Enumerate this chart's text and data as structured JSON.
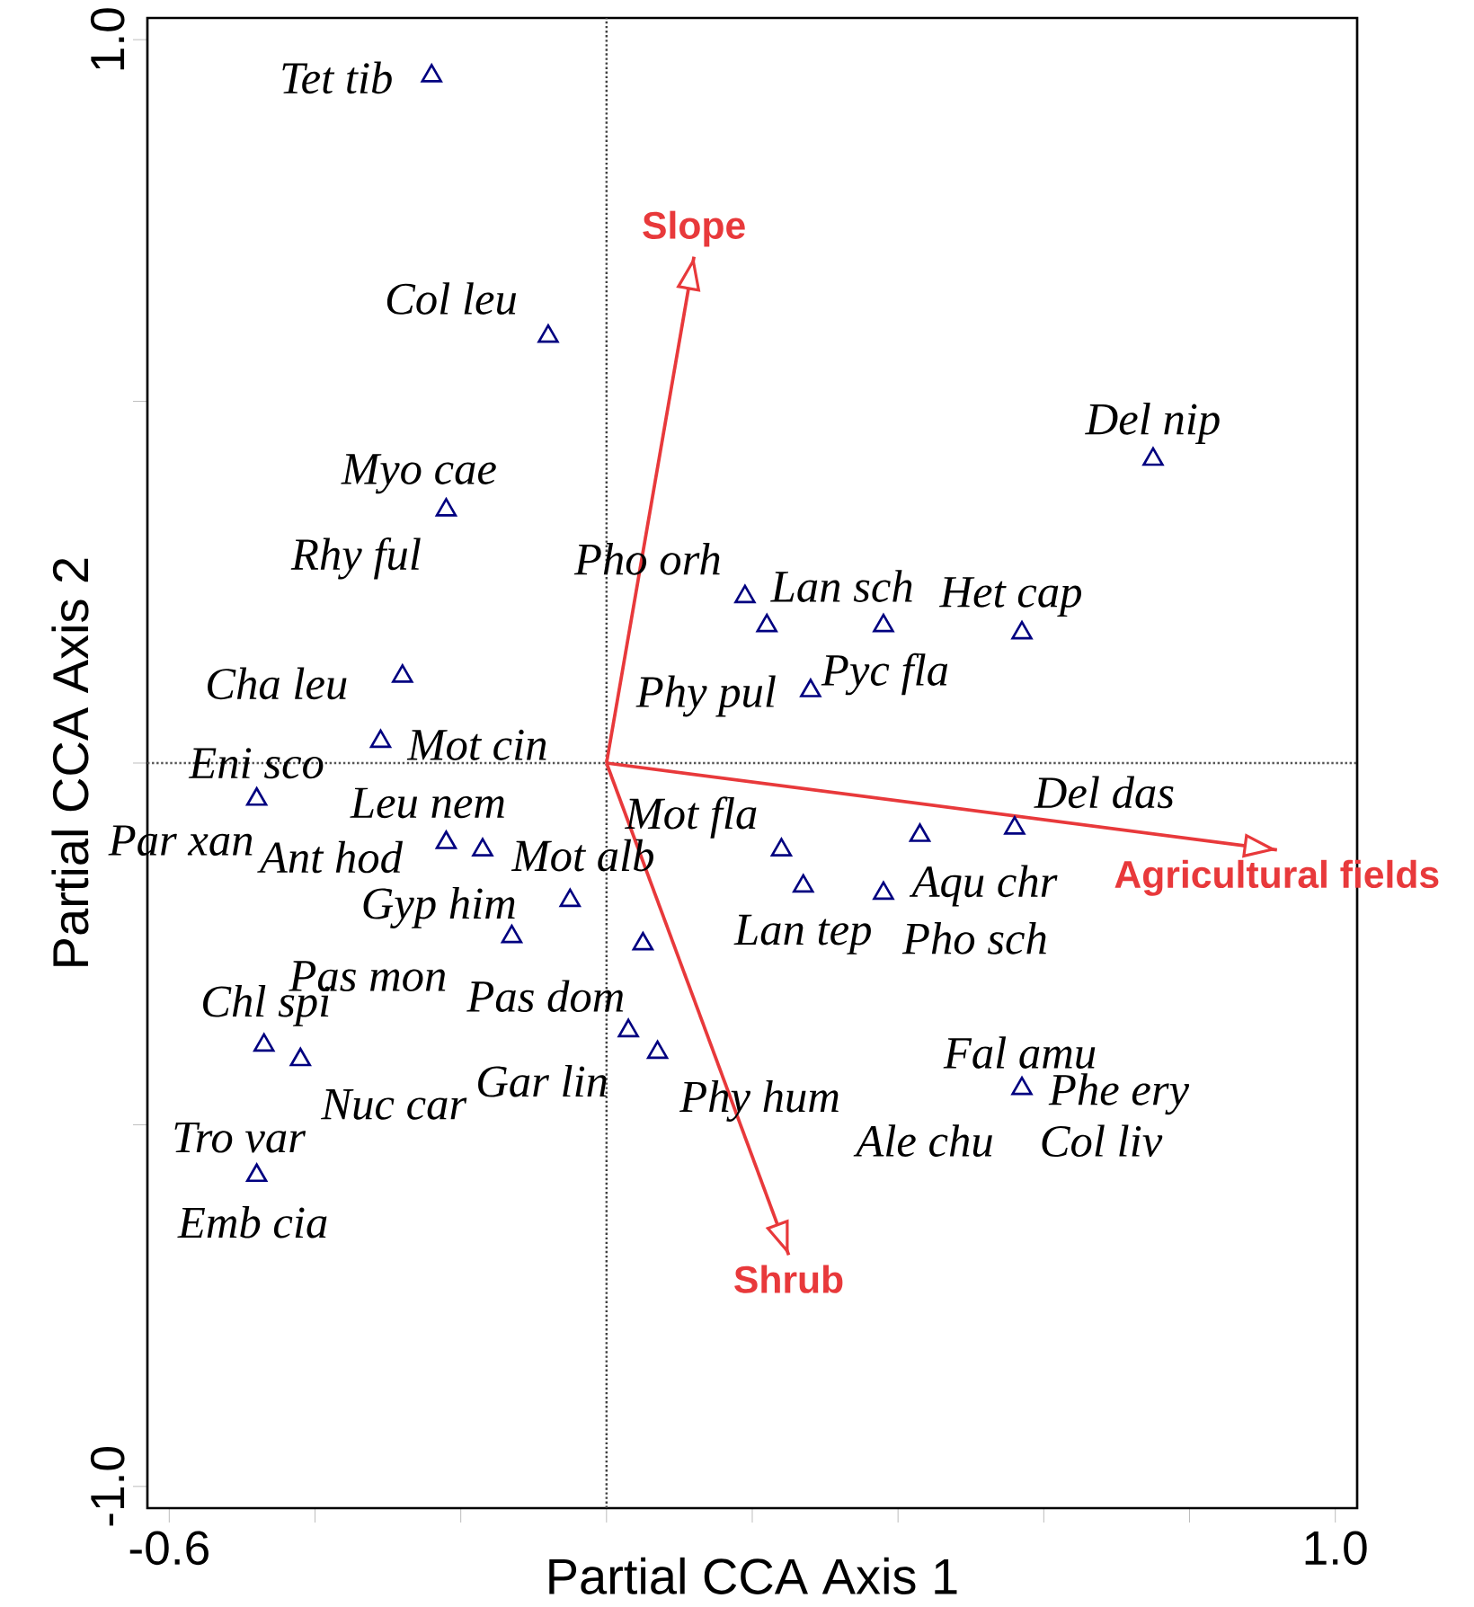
{
  "chart_data": {
    "type": "scatter",
    "xlabel": "Partial CCA Axis 1",
    "ylabel": "Partial CCA Axis 2",
    "xlim": [
      -0.63,
      1.03
    ],
    "ylim": [
      -1.03,
      1.03
    ],
    "xticks": [
      {
        "value": -0.6,
        "label": "-0.6"
      },
      {
        "value": -0.4,
        "label": null
      },
      {
        "value": -0.2,
        "label": null
      },
      {
        "value": 0,
        "label": null
      },
      {
        "value": 0.2,
        "label": null
      },
      {
        "value": 0.4,
        "label": null
      },
      {
        "value": 0.6,
        "label": null
      },
      {
        "value": 0.8,
        "label": null
      },
      {
        "value": 1.0,
        "label": "1.0"
      }
    ],
    "yticks": [
      {
        "value": -1.0,
        "label": "-1.0"
      },
      {
        "value": -0.5,
        "label": null
      },
      {
        "value": 0,
        "label": null
      },
      {
        "value": 0.5,
        "label": null
      },
      {
        "value": 1.0,
        "label": "1.0"
      }
    ],
    "ref_lines": [
      {
        "axis": "x",
        "value": 0,
        "line_style": "dotted",
        "color": "#404040"
      },
      {
        "axis": "y",
        "value": 0,
        "line_style": "dotted",
        "color": "#555555"
      }
    ],
    "series": [
      {
        "color": "#000080",
        "marker": "triangle",
        "x": [
          -0.24,
          -0.08,
          0.75,
          -0.22,
          0.19,
          0.22,
          0.38,
          0.57,
          -0.28,
          0.28,
          -0.31,
          -0.48,
          -0.22,
          -0.17,
          0.24,
          0.43,
          0.56,
          0.27,
          0.38,
          -0.05,
          -0.13,
          0.05,
          -0.47,
          -0.42,
          0.03,
          0.07,
          0.57,
          -0.48
        ],
        "values": [
          0.95,
          0.59,
          0.42,
          0.35,
          0.23,
          0.19,
          0.19,
          0.18,
          0.12,
          0.1,
          0.03,
          -0.05,
          -0.11,
          -0.12,
          -0.12,
          -0.1,
          -0.09,
          -0.17,
          -0.18,
          -0.19,
          -0.24,
          -0.25,
          -0.39,
          -0.41,
          -0.37,
          -0.4,
          -0.45,
          -0.57
        ]
      },
      {
        "type": "line",
        "color": "#e8393b",
        "x": [
          0,
          0.12
        ],
        "values": [
          0,
          0.7
        ]
      },
      {
        "type": "line",
        "color": "#e8393b",
        "x": [
          0,
          0.92
        ],
        "values": [
          0,
          -0.12
        ]
      },
      {
        "type": "line",
        "color": "#e8393b",
        "x": [
          0,
          0.25
        ],
        "values": [
          0,
          -0.68
        ]
      }
    ],
    "annotations": [
      {
        "text": "Slope",
        "x": 0.12,
        "y": 0.7
      },
      {
        "text": "Agricultural fields",
        "x": 0.92,
        "y": -0.12
      },
      {
        "text": "Shrub",
        "x": 0.25,
        "y": -0.68
      },
      {
        "text": "Tet tib",
        "x": -0.24,
        "y": 0.95
      },
      {
        "text": "Col leu",
        "x": -0.08,
        "y": 0.59
      },
      {
        "text": "Del nip",
        "x": 0.75,
        "y": 0.42
      },
      {
        "text": "Myo cae",
        "x": -0.22,
        "y": 0.35
      },
      {
        "text": "Rhy ful",
        "x": -0.22,
        "y": 0.35
      },
      {
        "text": "Pho orh",
        "x": 0.19,
        "y": 0.23
      },
      {
        "text": "Lan sch",
        "x": 0.22,
        "y": 0.19
      },
      {
        "text": "Het cap",
        "x": 0.57,
        "y": 0.18
      },
      {
        "text": "Cha leu",
        "x": -0.28,
        "y": 0.12
      },
      {
        "text": "Phy pul",
        "x": 0.28,
        "y": 0.1
      },
      {
        "text": "Pyc fla",
        "x": 0.38,
        "y": 0.19
      },
      {
        "text": "Mot cin",
        "x": -0.31,
        "y": 0.03
      },
      {
        "text": "Eni sco",
        "x": -0.48,
        "y": -0.05
      },
      {
        "text": "Leu nem",
        "x": -0.22,
        "y": -0.11
      },
      {
        "text": "Par xan",
        "x": -0.48,
        "y": -0.05
      },
      {
        "text": "Ant hod",
        "x": -0.22,
        "y": -0.11
      },
      {
        "text": "Mot alb",
        "x": -0.17,
        "y": -0.12
      },
      {
        "text": "Mot fla",
        "x": 0.24,
        "y": -0.12
      },
      {
        "text": "Del das",
        "x": 0.56,
        "y": -0.09
      },
      {
        "text": "Aqu chr",
        "x": 0.43,
        "y": -0.1
      },
      {
        "text": "Lan tep",
        "x": 0.27,
        "y": -0.17
      },
      {
        "text": "Pho sch",
        "x": 0.38,
        "y": -0.18
      },
      {
        "text": "Gyp him",
        "x": -0.05,
        "y": -0.19
      },
      {
        "text": "Pas mon",
        "x": -0.13,
        "y": -0.24
      },
      {
        "text": "Pas dom",
        "x": 0.05,
        "y": -0.25
      },
      {
        "text": "Chl spi",
        "x": -0.47,
        "y": -0.39
      },
      {
        "text": "Nuc car",
        "x": -0.42,
        "y": -0.41
      },
      {
        "text": "Gar lin",
        "x": 0.03,
        "y": -0.37
      },
      {
        "text": "Phy hum",
        "x": 0.07,
        "y": -0.4
      },
      {
        "text": "Tro var",
        "x": -0.48,
        "y": -0.57
      },
      {
        "text": "Emb cia",
        "x": -0.48,
        "y": -0.57
      },
      {
        "text": "Fal amu",
        "x": 0.57,
        "y": -0.45
      },
      {
        "text": "Phe ery",
        "x": 0.57,
        "y": -0.45
      },
      {
        "text": "Ale chu",
        "x": 0.57,
        "y": -0.45
      },
      {
        "text": "Col liv",
        "x": 0.57,
        "y": -0.45
      }
    ]
  }
}
